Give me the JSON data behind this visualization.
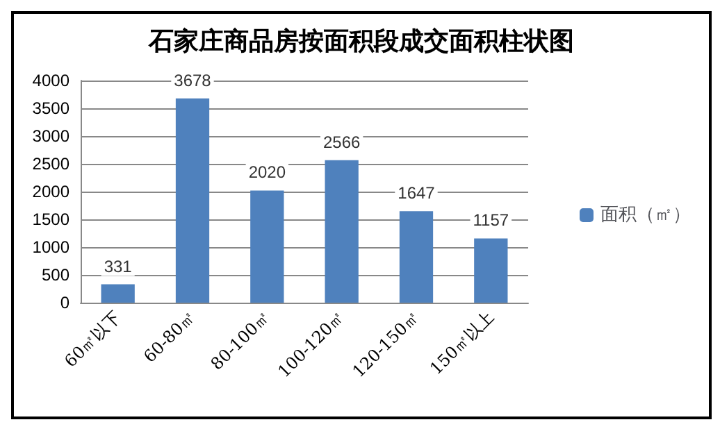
{
  "chart_data": {
    "type": "bar",
    "title": "石家庄商品房按面积段成交面积柱状图",
    "categories": [
      "60㎡以下",
      "60-80㎡",
      "80-100㎡",
      "100-120㎡",
      "120-150㎡",
      "150㎡以上"
    ],
    "series": [
      {
        "name": "面积（㎡）",
        "color": "#4f81bd",
        "values": [
          331,
          3678,
          2020,
          2566,
          1647,
          1157
        ]
      }
    ],
    "ylim": [
      0,
      4000
    ],
    "yticks": [
      0,
      500,
      1000,
      1500,
      2000,
      2500,
      3000,
      3500,
      4000
    ],
    "grid": "y",
    "legend": "right",
    "data_labels": true
  }
}
